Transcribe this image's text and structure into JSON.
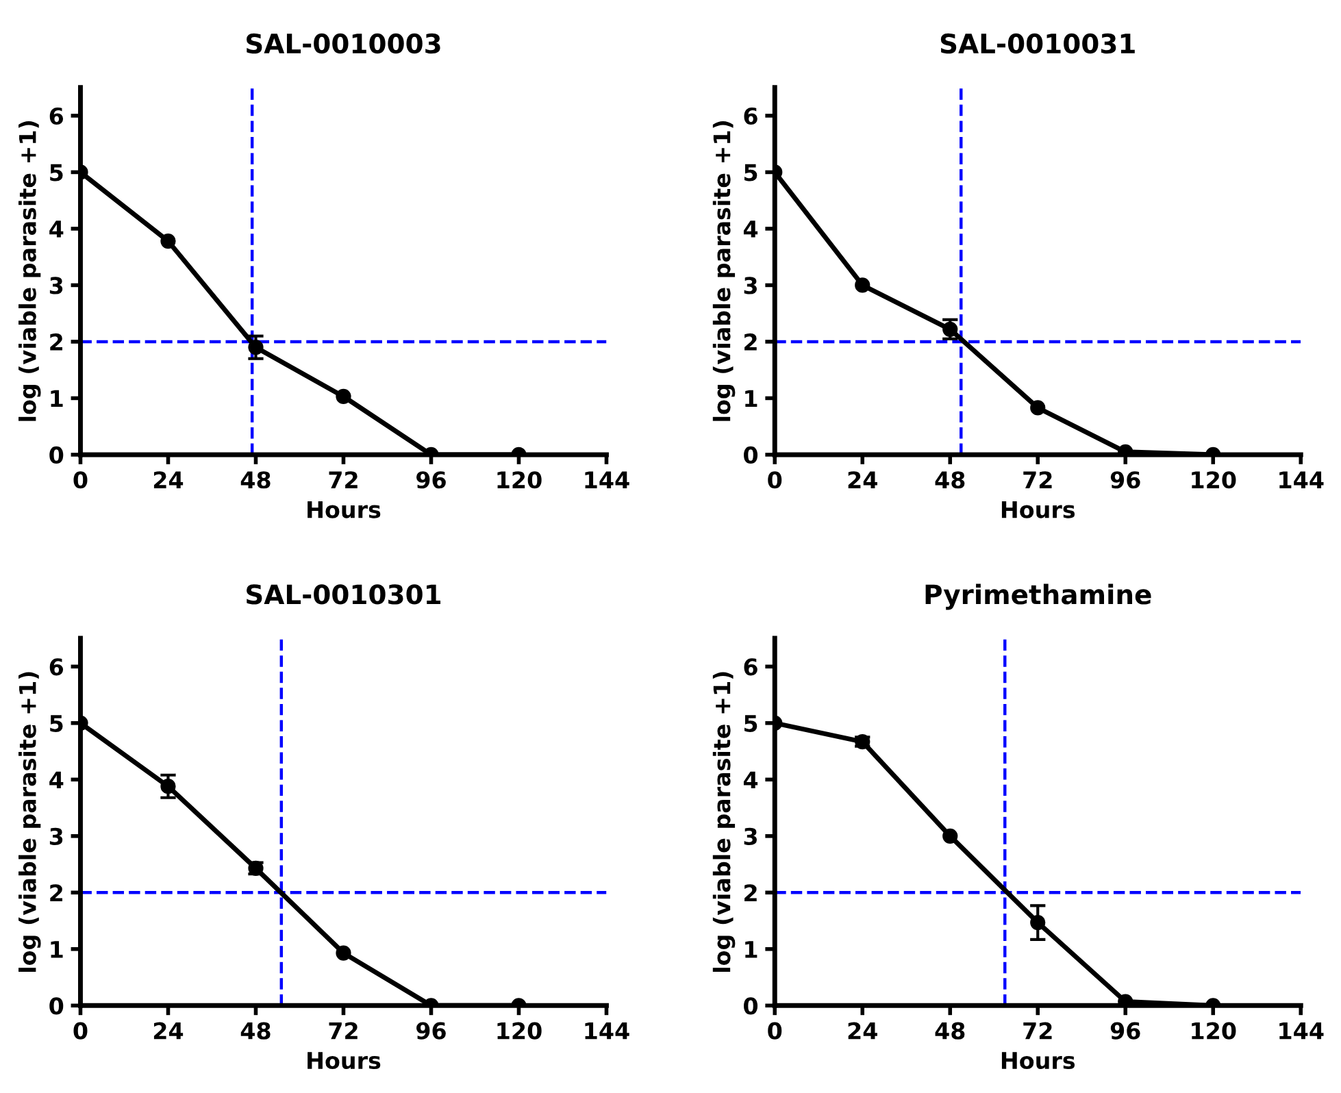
{
  "chart_data": [
    {
      "type": "line",
      "title": "SAL-0010003",
      "xlabel": "Hours",
      "ylabel": "log (viable parasite +1)",
      "x": [
        0,
        24,
        48,
        72,
        96,
        120
      ],
      "series": [
        {
          "color": "#000000",
          "values": [
            5,
            3.78,
            1.9,
            1.03,
            0,
            0
          ],
          "errors": [
            null,
            null,
            0.2,
            null,
            null,
            null
          ]
        }
      ],
      "xlim": [
        0,
        144
      ],
      "ylim": [
        0,
        6.5
      ],
      "xticks": [
        0,
        24,
        48,
        72,
        96,
        120,
        144
      ],
      "yticks": [
        0,
        1,
        2,
        3,
        4,
        5,
        6
      ],
      "marker": "circle",
      "line_style": "solid",
      "grid": false,
      "legend": false,
      "ref_lines": [
        {
          "axis": "y",
          "value": 2,
          "color": "#0000ff",
          "line_style": "dashed"
        },
        {
          "axis": "x",
          "value": 47,
          "color": "#0000ff",
          "line_style": "dashed"
        }
      ]
    },
    {
      "type": "line",
      "title": "SAL-0010031",
      "xlabel": "Hours",
      "ylabel": "log (viable parasite +1)",
      "x": [
        0,
        24,
        48,
        72,
        96,
        120
      ],
      "series": [
        {
          "color": "#000000",
          "values": [
            5,
            3.0,
            2.22,
            0.83,
            0.05,
            0
          ],
          "errors": [
            null,
            null,
            0.17,
            null,
            null,
            null
          ]
        }
      ],
      "xlim": [
        0,
        144
      ],
      "ylim": [
        0,
        6.5
      ],
      "xticks": [
        0,
        24,
        48,
        72,
        96,
        120,
        144
      ],
      "yticks": [
        0,
        1,
        2,
        3,
        4,
        5,
        6
      ],
      "marker": "circle",
      "line_style": "solid",
      "grid": false,
      "legend": false,
      "ref_lines": [
        {
          "axis": "y",
          "value": 2,
          "color": "#0000ff",
          "line_style": "dashed"
        },
        {
          "axis": "x",
          "value": 51,
          "color": "#0000ff",
          "line_style": "dashed"
        }
      ]
    },
    {
      "type": "line",
      "title": "SAL-0010301",
      "xlabel": "Hours",
      "ylabel": "log (viable parasite +1)",
      "x": [
        0,
        24,
        48,
        72,
        96,
        120
      ],
      "series": [
        {
          "color": "#000000",
          "values": [
            5,
            3.88,
            2.43,
            0.93,
            0,
            0
          ],
          "errors": [
            null,
            0.2,
            0.1,
            null,
            null,
            null
          ]
        }
      ],
      "xlim": [
        0,
        144
      ],
      "ylim": [
        0,
        6.5
      ],
      "xticks": [
        0,
        24,
        48,
        72,
        96,
        120,
        144
      ],
      "yticks": [
        0,
        1,
        2,
        3,
        4,
        5,
        6
      ],
      "marker": "circle",
      "line_style": "solid",
      "grid": false,
      "legend": false,
      "ref_lines": [
        {
          "axis": "y",
          "value": 2,
          "color": "#0000ff",
          "line_style": "dashed"
        },
        {
          "axis": "x",
          "value": 55,
          "color": "#0000ff",
          "line_style": "dashed"
        }
      ]
    },
    {
      "type": "line",
      "title": "Pyrimethamine",
      "xlabel": "Hours",
      "ylabel": "log (viable parasite +1)",
      "x": [
        0,
        24,
        48,
        72,
        96,
        120
      ],
      "series": [
        {
          "color": "#000000",
          "values": [
            5,
            4.67,
            3.0,
            1.47,
            0.07,
            0
          ],
          "errors": [
            null,
            0.08,
            null,
            0.3,
            null,
            null
          ]
        }
      ],
      "xlim": [
        0,
        144
      ],
      "ylim": [
        0,
        6.5
      ],
      "xticks": [
        0,
        24,
        48,
        72,
        96,
        120,
        144
      ],
      "yticks": [
        0,
        1,
        2,
        3,
        4,
        5,
        6
      ],
      "marker": "circle",
      "line_style": "solid",
      "grid": false,
      "legend": false,
      "ref_lines": [
        {
          "axis": "y",
          "value": 2,
          "color": "#0000ff",
          "line_style": "dashed"
        },
        {
          "axis": "x",
          "value": 63,
          "color": "#0000ff",
          "line_style": "dashed"
        }
      ]
    }
  ]
}
